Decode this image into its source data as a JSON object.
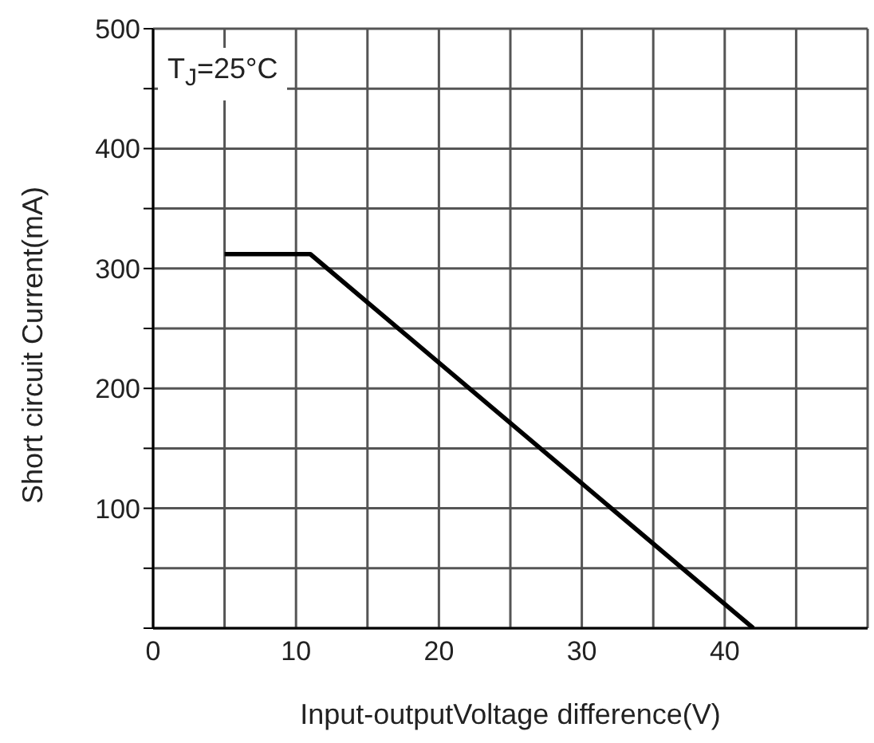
{
  "chart_data": {
    "type": "line",
    "xlabel": "Input-outputVoltage difference(V)",
    "ylabel": "Short circuit Current(mA)",
    "annotations": [
      "T$_{J}$=25°C"
    ],
    "series": [
      {
        "color": "#000000",
        "x": [
          5,
          11,
          42
        ],
        "values": [
          312,
          312,
          0
        ]
      }
    ],
    "xlim": [
      0,
      50
    ],
    "xticks": [
      0,
      {
        "value": 5,
        "label": null
      },
      10,
      {
        "value": 15,
        "label": null
      },
      20,
      {
        "value": 25,
        "label": null
      },
      30,
      {
        "value": 35,
        "label": null
      },
      40,
      {
        "value": 45,
        "label": null
      },
      {
        "value": 50,
        "label": null
      }
    ],
    "ylim": [
      0,
      500
    ],
    "yticks": [
      {
        "value": 0,
        "label": null
      },
      {
        "value": 50,
        "label": null
      },
      100,
      {
        "value": 150,
        "label": null
      },
      200,
      {
        "value": 250,
        "label": null
      },
      300,
      {
        "value": 350,
        "label": null
      },
      400,
      {
        "value": 450,
        "label": null
      },
      500
    ],
    "grid": true,
    "legend": false,
    "marker": "none",
    "line_style": "solid"
  }
}
